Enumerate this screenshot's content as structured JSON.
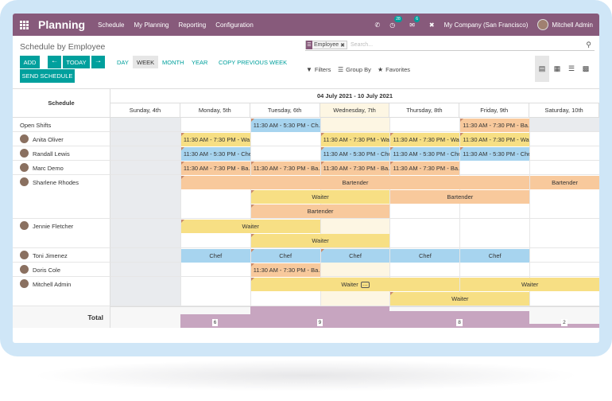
{
  "topbar": {
    "app_name": "Planning",
    "menu": [
      "Schedule",
      "My Planning",
      "Reporting",
      "Configuration"
    ],
    "activity_count": "28",
    "messages_count": "6",
    "company": "My Company (San Francisco)",
    "user": "Mitchell Admin"
  },
  "control_panel": {
    "title": "Schedule by Employee",
    "search_facet": "Employee",
    "search_placeholder": "Search...",
    "add_label": "ADD",
    "today_label": "TODAY",
    "send_label": "SEND SCHEDULE",
    "scales": [
      "DAY",
      "WEEK",
      "MONTH",
      "YEAR"
    ],
    "active_scale": "WEEK",
    "copy_label": "COPY PREVIOUS WEEK",
    "filters_label": "Filters",
    "groupby_label": "Group By",
    "favorites_label": "Favorites"
  },
  "gantt": {
    "resource_header": "Schedule",
    "range_title": "04 July 2021 - 10 July 2021",
    "days": [
      "Sunday, 4th",
      "Monday, 5th",
      "Tuesday, 6th",
      "Wednesday, 7th",
      "Thursday, 8th",
      "Friday, 9th",
      "Saturday, 10th"
    ],
    "rows": [
      {
        "name": "Open Shifts",
        "avatar": false
      },
      {
        "name": "Anita Oliver",
        "avatar": true
      },
      {
        "name": "Randall Lewis",
        "avatar": true
      },
      {
        "name": "Marc Demo",
        "avatar": true
      },
      {
        "name": "Sharlene Rhodes",
        "avatar": true
      },
      {
        "name": "Jennie Fletcher",
        "avatar": true
      },
      {
        "name": "Toni Jimenez",
        "avatar": true
      },
      {
        "name": "Doris Cole",
        "avatar": true
      },
      {
        "name": "Mitchell Admin",
        "avatar": true
      }
    ],
    "pills": {
      "ch": "11:30 AM - 5:30 PM - Ch...",
      "ba": "11:30 AM - 7:30 PM - Ba...",
      "wa": "11:30 AM - 7:30 PM - Wa...",
      "chef_full": "11:30 AM - 5:30 PM - Chef",
      "bartender": "Bartender",
      "waiter": "Waiter",
      "chef": "Chef"
    },
    "total_label": "Total",
    "totals": [
      "6",
      "9",
      "8",
      "2"
    ]
  },
  "colors": {
    "brand": "#875a7b",
    "teal": "#00a09d",
    "waiter": "#f7df84",
    "chef": "#a7d4ef",
    "bartender": "#f8c99c",
    "total_bar": "#c7a5c0"
  }
}
